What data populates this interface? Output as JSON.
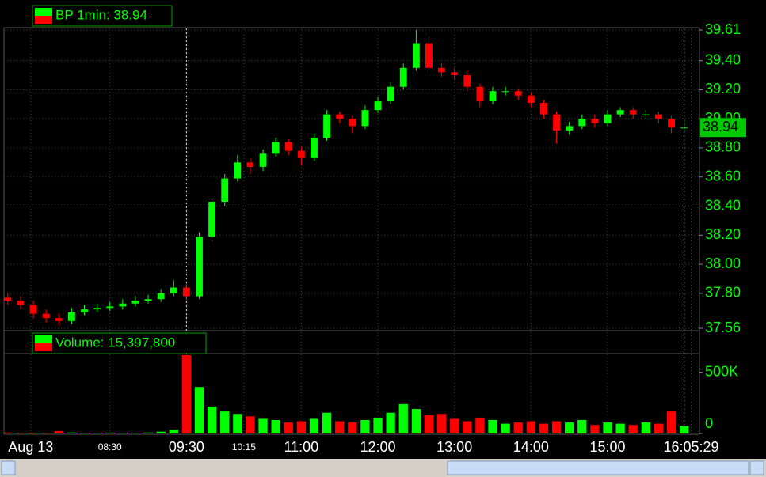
{
  "chart_data": [
    {
      "type": "candlestick",
      "title": "BP 1min: 38.94",
      "last_price": 38.94,
      "up_color": "#00ff00",
      "down_color": "#ff0000",
      "x": [
        430,
        440,
        450,
        460,
        470,
        480,
        490,
        500,
        510,
        520,
        530,
        540,
        550,
        560,
        570,
        580,
        590,
        600,
        610,
        620,
        630,
        640,
        650,
        660,
        670,
        680,
        690,
        700,
        710,
        720,
        730,
        740,
        750,
        760,
        770,
        780,
        790,
        800,
        810,
        820,
        830,
        840,
        850,
        860,
        870,
        880,
        890,
        900,
        910,
        920,
        930,
        940,
        950,
        960
      ],
      "open": [
        37.77,
        37.75,
        37.72,
        37.66,
        37.63,
        37.61,
        37.67,
        37.69,
        37.7,
        37.71,
        37.73,
        37.75,
        37.76,
        37.8,
        37.84,
        37.78,
        38.19,
        38.43,
        38.59,
        38.7,
        38.67,
        38.76,
        38.84,
        38.78,
        38.73,
        38.87,
        39.03,
        39.0,
        38.95,
        39.06,
        39.12,
        39.22,
        39.35,
        39.52,
        39.35,
        39.32,
        39.3,
        39.22,
        39.12,
        39.19,
        39.19,
        39.16,
        39.11,
        39.03,
        38.92,
        38.95,
        39.0,
        38.97,
        39.03,
        39.06,
        39.03,
        39.03,
        39.0,
        38.94
      ],
      "high": [
        37.8,
        37.78,
        37.75,
        37.69,
        37.66,
        37.7,
        37.72,
        37.73,
        37.74,
        37.76,
        37.78,
        37.79,
        37.83,
        37.89,
        37.87,
        38.22,
        38.46,
        38.62,
        38.75,
        38.73,
        38.79,
        38.87,
        38.86,
        38.81,
        38.9,
        39.06,
        39.05,
        39.02,
        39.09,
        39.15,
        39.25,
        39.38,
        39.61,
        39.56,
        39.38,
        39.35,
        39.33,
        39.24,
        39.22,
        39.22,
        39.21,
        39.18,
        39.13,
        39.05,
        38.98,
        39.03,
        39.03,
        39.06,
        39.08,
        39.08,
        39.06,
        39.05,
        39.02,
        38.99
      ],
      "low": [
        37.72,
        37.69,
        37.63,
        37.6,
        37.58,
        37.59,
        37.65,
        37.67,
        37.68,
        37.69,
        37.71,
        37.73,
        37.74,
        37.78,
        37.75,
        37.76,
        38.16,
        38.4,
        38.57,
        38.62,
        38.64,
        38.74,
        38.75,
        38.68,
        38.71,
        38.85,
        38.97,
        38.9,
        38.93,
        39.04,
        39.1,
        39.2,
        39.33,
        39.32,
        39.29,
        39.27,
        39.19,
        39.08,
        39.1,
        39.16,
        39.13,
        39.08,
        39.0,
        38.83,
        38.89,
        38.93,
        38.94,
        38.95,
        39.01,
        39.0,
        39.0,
        38.97,
        38.9,
        38.91
      ],
      "close": [
        37.75,
        37.72,
        37.66,
        37.63,
        37.61,
        37.67,
        37.69,
        37.7,
        37.71,
        37.73,
        37.75,
        37.76,
        37.8,
        37.84,
        37.78,
        38.19,
        38.43,
        38.59,
        38.7,
        38.67,
        38.76,
        38.84,
        38.78,
        38.73,
        38.87,
        39.03,
        39.0,
        38.95,
        39.06,
        39.12,
        39.22,
        39.35,
        39.52,
        39.35,
        39.32,
        39.3,
        39.22,
        39.12,
        39.19,
        39.19,
        39.16,
        39.11,
        39.03,
        38.92,
        38.95,
        39.0,
        38.97,
        39.03,
        39.06,
        39.03,
        39.03,
        39.0,
        38.94,
        38.94
      ],
      "xlim": [
        427,
        972
      ],
      "ylim": [
        37.56,
        39.61
      ],
      "yticks": [
        37.56,
        {
          "value": 37.8,
          "label": "37.80"
        },
        {
          "value": 38,
          "label": "38.00"
        },
        {
          "value": 38.2,
          "label": "38.20"
        },
        {
          "value": 38.4,
          "label": "38.40"
        },
        {
          "value": 38.6,
          "label": "38.60"
        },
        {
          "value": 38.8,
          "label": "38.80"
        },
        {
          "value": 39,
          "label": "39.00"
        },
        {
          "value": 39.2,
          "label": "39.20"
        },
        {
          "value": 39.4,
          "label": "39.40"
        },
        39.61
      ],
      "session_lines": [
        570,
        960
      ],
      "grid": true
    },
    {
      "type": "bar",
      "title": "Volume: 15,397,800",
      "x": [
        430,
        440,
        450,
        460,
        470,
        480,
        490,
        500,
        510,
        520,
        530,
        540,
        550,
        560,
        570,
        580,
        590,
        600,
        610,
        620,
        630,
        640,
        650,
        660,
        670,
        680,
        690,
        700,
        710,
        720,
        730,
        740,
        750,
        760,
        770,
        780,
        790,
        800,
        810,
        820,
        830,
        840,
        850,
        860,
        870,
        880,
        890,
        900,
        910,
        920,
        930,
        940,
        950,
        960
      ],
      "values": [
        8000,
        5000,
        6000,
        5000,
        20000,
        8000,
        6000,
        5000,
        7000,
        6000,
        6000,
        8000,
        15000,
        30000,
        640000,
        380000,
        220000,
        180000,
        160000,
        140000,
        120000,
        110000,
        90000,
        100000,
        120000,
        170000,
        100000,
        90000,
        110000,
        130000,
        170000,
        240000,
        200000,
        150000,
        160000,
        120000,
        100000,
        130000,
        110000,
        80000,
        90000,
        100000,
        80000,
        100000,
        90000,
        110000,
        70000,
        90000,
        80000,
        70000,
        90000,
        80000,
        180000,
        60000
      ],
      "xlim": [
        427,
        972
      ],
      "ylim": [
        0,
        640000
      ],
      "yticks": [
        0,
        {
          "value": 500000,
          "label": "500K"
        }
      ],
      "xticks": [
        {
          "value": 448,
          "label": "Aug 13"
        },
        {
          "value": 570,
          "label": "09:30"
        },
        {
          "value": 660,
          "label": "11:00"
        },
        {
          "value": 720,
          "label": "12:00"
        },
        {
          "value": 780,
          "label": "13:00"
        },
        {
          "value": 840,
          "label": "14:00"
        },
        {
          "value": 900,
          "label": "15:00"
        },
        {
          "value": 965.48,
          "label": "16:05:29"
        }
      ],
      "xticks_minor": [
        {
          "value": 510,
          "label": "08:30"
        },
        {
          "value": 615,
          "label": "10:15"
        }
      ]
    }
  ]
}
